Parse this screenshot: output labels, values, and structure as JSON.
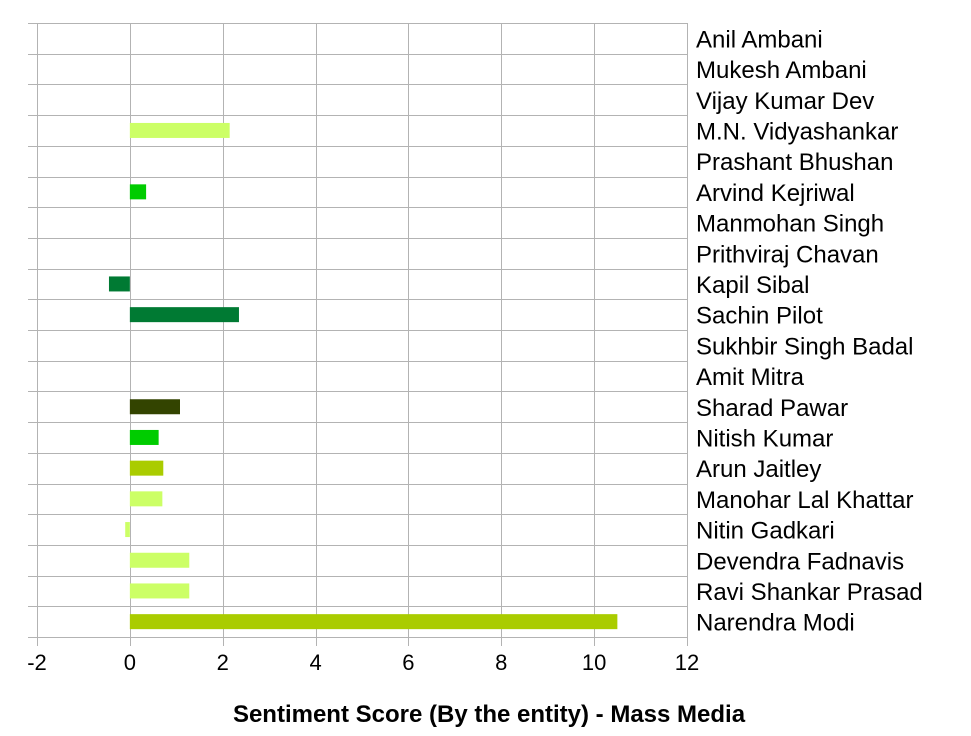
{
  "chart_data": {
    "type": "bar",
    "orientation": "horizontal",
    "xlabel": "Sentiment Score (By the entity) - Mass Media",
    "xlim": [
      -2,
      12
    ],
    "xticks": [
      -2,
      0,
      2,
      4,
      6,
      8,
      10,
      12
    ],
    "grid": true,
    "legend": "none",
    "categories": [
      "Anil Ambani",
      "Mukesh Ambani",
      "Vijay Kumar Dev",
      "M.N. Vidyashankar",
      "Prashant Bhushan",
      "Arvind Kejriwal",
      "Manmohan Singh",
      "Prithviraj Chavan",
      "Kapil Sibal",
      "Sachin Pilot",
      "Sukhbir Singh Badal",
      "Amit Mitra",
      "Sharad Pawar",
      "Nitish Kumar",
      "Arun Jaitley",
      "Manohar Lal Khattar",
      "Nitin Gadkari",
      "Devendra Fadnavis",
      "Ravi Shankar Prasad",
      "Narendra Modi"
    ],
    "values": [
      0,
      0,
      0,
      2.15,
      0,
      0.35,
      0,
      0,
      -0.45,
      2.35,
      0,
      0,
      1.08,
      0.62,
      0.72,
      0.7,
      -0.1,
      1.28,
      1.28,
      10.5
    ],
    "colors": [
      "#ccff66",
      "#ccff66",
      "#ccff66",
      "#ccff66",
      "#00cc00",
      "#00cc00",
      "#007a33",
      "#007a33",
      "#007a33",
      "#007a33",
      "#334400",
      "#334400",
      "#334400",
      "#00cc00",
      "#aacc00",
      "#ccff66",
      "#ccff66",
      "#ccff66",
      "#ccff66",
      "#aacc00"
    ]
  }
}
